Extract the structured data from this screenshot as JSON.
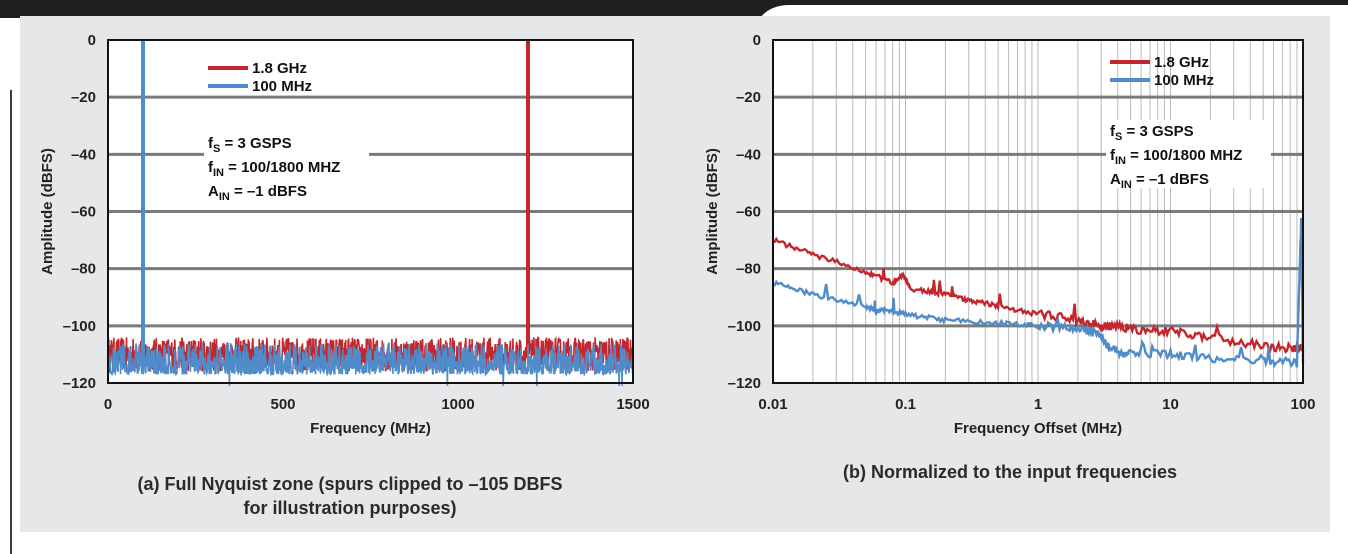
{
  "captions": {
    "a_line1": "(a) Full Nyquist zone (spurs clipped to –105 DBFS",
    "a_line2": "for illustration purposes)",
    "b": "(b) Normalized to the input frequencies"
  },
  "colors": {
    "red": "#c4262e",
    "blue": "#4f8cc9",
    "band": "#1f1f1f"
  },
  "annotation": {
    "fs_main": "f",
    "fs_sub": "S",
    "fs_rest": " = 3 GSPS",
    "fin_main": "f",
    "fin_sub": "IN",
    "fin_rest": " = 100/1800 MHZ",
    "ain_main": "A",
    "ain_sub": "IN",
    "ain_rest": " = –1 dBFS"
  },
  "chart_data": [
    {
      "type": "line",
      "xlabel": "Frequency (MHz)",
      "ylabel": "Amplitude (dBFS)",
      "xlim": [
        0,
        1500
      ],
      "ylim": [
        -120,
        0
      ],
      "x_ticks": [
        "0",
        "500",
        "1000",
        "1500"
      ],
      "y_ticks": [
        "0",
        "–20",
        "–40",
        "–60",
        "–80",
        "–100",
        "–120"
      ],
      "grid": "horizontal",
      "legend_position": "top-left",
      "series": [
        {
          "name": "1.8 GHz",
          "color": "#c4262e",
          "noise_floor_dBFS": [
            -116,
            -104
          ],
          "peaks": [
            {
              "x": 1200,
              "y": 0
            }
          ]
        },
        {
          "name": "100 MHz",
          "color": "#4f8cc9",
          "noise_floor_dBFS": [
            -117,
            -106
          ],
          "peaks": [
            {
              "x": 100,
              "y": 0
            }
          ]
        }
      ]
    },
    {
      "type": "line",
      "xlabel": "Frequency Offset (MHz)",
      "ylabel": "Amplitude (dBFS)",
      "x_scale": "log",
      "xlim": [
        0.01,
        100
      ],
      "ylim": [
        -120,
        0
      ],
      "x_ticks": [
        "0.01",
        "0.1",
        "1",
        "10",
        "100"
      ],
      "y_ticks": [
        "0",
        "–20",
        "–40",
        "–60",
        "–80",
        "–100",
        "–120"
      ],
      "grid": "both",
      "legend_position": "top-right",
      "series": [
        {
          "name": "1.8 GHz",
          "color": "#c4262e",
          "x": [
            0.01,
            0.02,
            0.05,
            0.08,
            0.095,
            0.11,
            0.2,
            0.3,
            0.5,
            1,
            2,
            3,
            5,
            10,
            20,
            50,
            90,
            100
          ],
          "y": [
            -70,
            -75,
            -81,
            -85,
            -82,
            -87,
            -89,
            -91,
            -93,
            -96,
            -98,
            -100,
            -101,
            -102,
            -104,
            -107,
            -108,
            -108
          ]
        },
        {
          "name": "100 MHz",
          "color": "#4f8cc9",
          "x": [
            0.01,
            0.02,
            0.05,
            0.06,
            0.07,
            0.1,
            0.2,
            0.5,
            1,
            2,
            3,
            3.5,
            5,
            10,
            20,
            50,
            90,
            97,
            100
          ],
          "y": [
            -85,
            -89,
            -93,
            -95,
            -94,
            -96,
            -98,
            -99,
            -100,
            -101,
            -103,
            -108,
            -110,
            -110,
            -111,
            -112,
            -113,
            -62,
            -113
          ]
        }
      ]
    }
  ]
}
